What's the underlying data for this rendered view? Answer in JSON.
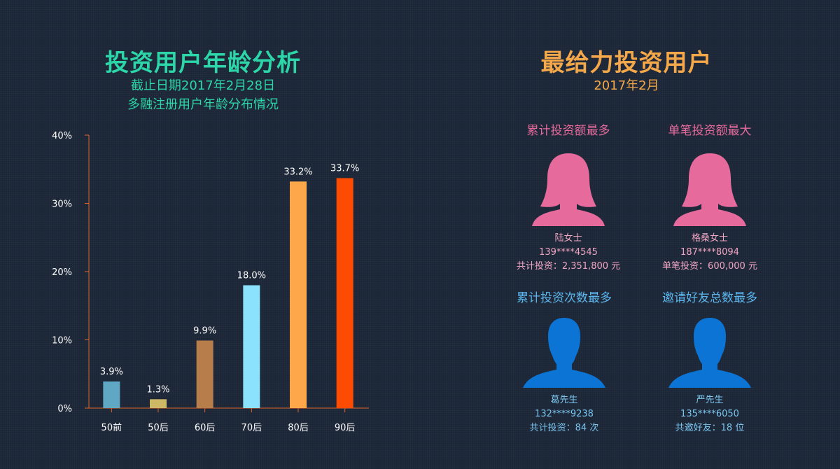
{
  "left_panel": {
    "title": "投资用户年龄分析",
    "subtitle_1": "截止日期2017年2月28日",
    "subtitle_2": "多融注册用户年龄分布情况"
  },
  "chart_data": {
    "type": "bar",
    "categories": [
      "50前",
      "50后",
      "60后",
      "70后",
      "80后",
      "90后"
    ],
    "values": [
      3.9,
      1.3,
      9.9,
      18.0,
      33.2,
      33.7
    ],
    "value_labels": [
      "3.9%",
      "1.3%",
      "9.9%",
      "18.0%",
      "33.2%",
      "33.7%"
    ],
    "colors": [
      "#5fa7c2",
      "#cdb866",
      "#b77d4a",
      "#8ae2fd",
      "#fea64a",
      "#fd4b02"
    ],
    "ylim": [
      0,
      40
    ],
    "yticks": [
      0,
      10,
      20,
      30,
      40
    ],
    "ytick_labels": [
      "0%",
      "10%",
      "20%",
      "30%",
      "40%"
    ],
    "axis_color": "#e0652a",
    "grid": false
  },
  "right_panel": {
    "title": "最给力投资用户",
    "subtitle": "2017年2月",
    "cards": [
      {
        "heading": "累计投资额最多",
        "name": "陆女士",
        "phone": "139****4545",
        "detail": "共计投资：2,351,800 元",
        "avatar": "female-user-icon",
        "color": "#e66a9c"
      },
      {
        "heading": "单笔投资额最大",
        "name": "格桑女士",
        "phone": "187****8094",
        "detail": "单笔投资：600,000 元",
        "avatar": "female-user-icon",
        "color": "#e66a9c"
      },
      {
        "heading": "累计投资次数最多",
        "name": "葛先生",
        "phone": "132****9238",
        "detail": "共计投资：84 次",
        "avatar": "male-user-icon",
        "color": "#0b74d4"
      },
      {
        "heading": "邀请好友总数最多",
        "name": "严先生",
        "phone": "135****6050",
        "detail": "共邀好友：18 位",
        "avatar": "male-user-icon",
        "color": "#0b74d4"
      }
    ]
  }
}
